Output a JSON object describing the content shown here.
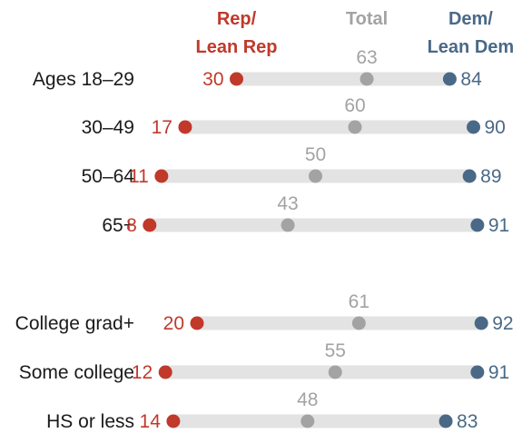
{
  "chart_data": {
    "type": "dot",
    "x_range": [
      0,
      100
    ],
    "legend": {
      "rep": [
        "Rep/",
        "Lean Rep"
      ],
      "total": [
        "Total"
      ],
      "dem": [
        "Dem/",
        "Lean Dem"
      ]
    },
    "colors": {
      "rep": "#c0392b",
      "total": "#a3a3a3",
      "dem": "#4a6987",
      "track": "#e3e3e3"
    },
    "rows": [
      {
        "label": "Ages 18–29",
        "rep": 30,
        "total": 63,
        "dem": 84
      },
      {
        "label": "30–49",
        "rep": 17,
        "total": 60,
        "dem": 90
      },
      {
        "label": "50–64",
        "rep": 11,
        "total": 50,
        "dem": 89
      },
      {
        "label": "65+",
        "rep": 8,
        "total": 43,
        "dem": 91
      },
      {
        "label": "College grad+",
        "rep": 20,
        "total": 61,
        "dem": 92
      },
      {
        "label": "Some college",
        "rep": 12,
        "total": 55,
        "dem": 91
      },
      {
        "label": "HS or less",
        "rep": 14,
        "total": 48,
        "dem": 83
      }
    ]
  }
}
